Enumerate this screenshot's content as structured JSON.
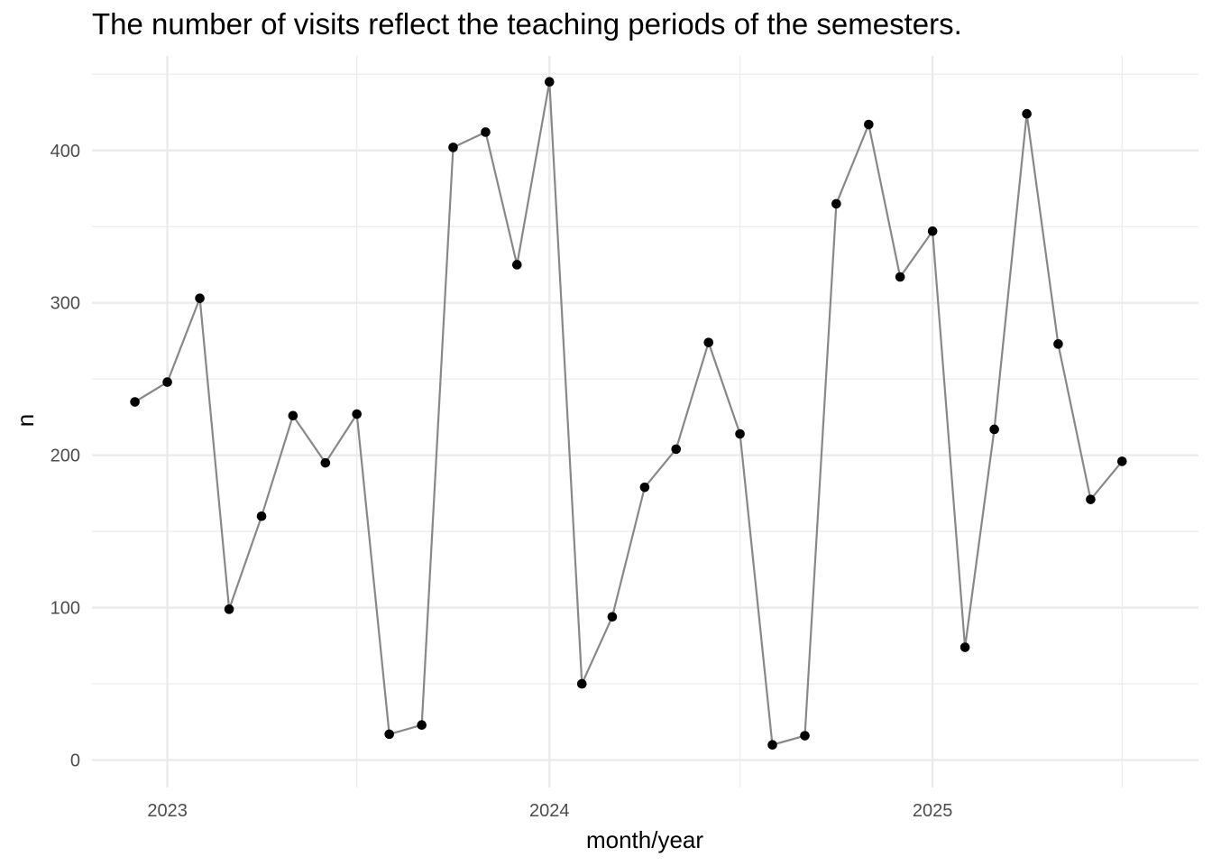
{
  "chart_data": {
    "type": "line",
    "title": "The number of visits reflect the teaching periods of the semesters.",
    "xlabel": "month/year",
    "ylabel": "n",
    "x_ticks": [
      "2023",
      "2024",
      "2025"
    ],
    "y_ticks": [
      0,
      100,
      200,
      300,
      400
    ],
    "ylim": [
      -18,
      462
    ],
    "xlim": [
      "2022-10-21",
      "2025-09-12"
    ],
    "grid": true,
    "series": [
      {
        "line_color": "#888888",
        "point_color": "#000000",
        "points": [
          {
            "x": "2022-12-01",
            "y": 235
          },
          {
            "x": "2023-01-01",
            "y": 248
          },
          {
            "x": "2023-02-01",
            "y": 303
          },
          {
            "x": "2023-03-01",
            "y": 99
          },
          {
            "x": "2023-04-01",
            "y": 160
          },
          {
            "x": "2023-05-01",
            "y": 226
          },
          {
            "x": "2023-06-01",
            "y": 195
          },
          {
            "x": "2023-07-01",
            "y": 227
          },
          {
            "x": "2023-08-01",
            "y": 17
          },
          {
            "x": "2023-09-01",
            "y": 23
          },
          {
            "x": "2023-10-01",
            "y": 402
          },
          {
            "x": "2023-11-01",
            "y": 412
          },
          {
            "x": "2023-12-01",
            "y": 325
          },
          {
            "x": "2024-01-01",
            "y": 445
          },
          {
            "x": "2024-02-01",
            "y": 50
          },
          {
            "x": "2024-03-01",
            "y": 94
          },
          {
            "x": "2024-04-01",
            "y": 179
          },
          {
            "x": "2024-05-01",
            "y": 204
          },
          {
            "x": "2024-06-01",
            "y": 274
          },
          {
            "x": "2024-07-01",
            "y": 214
          },
          {
            "x": "2024-08-01",
            "y": 10
          },
          {
            "x": "2024-09-01",
            "y": 16
          },
          {
            "x": "2024-10-01",
            "y": 365
          },
          {
            "x": "2024-11-01",
            "y": 417
          },
          {
            "x": "2024-12-01",
            "y": 317
          },
          {
            "x": "2025-01-01",
            "y": 347
          },
          {
            "x": "2025-02-01",
            "y": 74
          },
          {
            "x": "2025-03-01",
            "y": 217
          },
          {
            "x": "2025-04-01",
            "y": 424
          },
          {
            "x": "2025-05-01",
            "y": 273
          },
          {
            "x": "2025-06-01",
            "y": 171
          },
          {
            "x": "2025-07-01",
            "y": 196
          }
        ]
      }
    ]
  }
}
